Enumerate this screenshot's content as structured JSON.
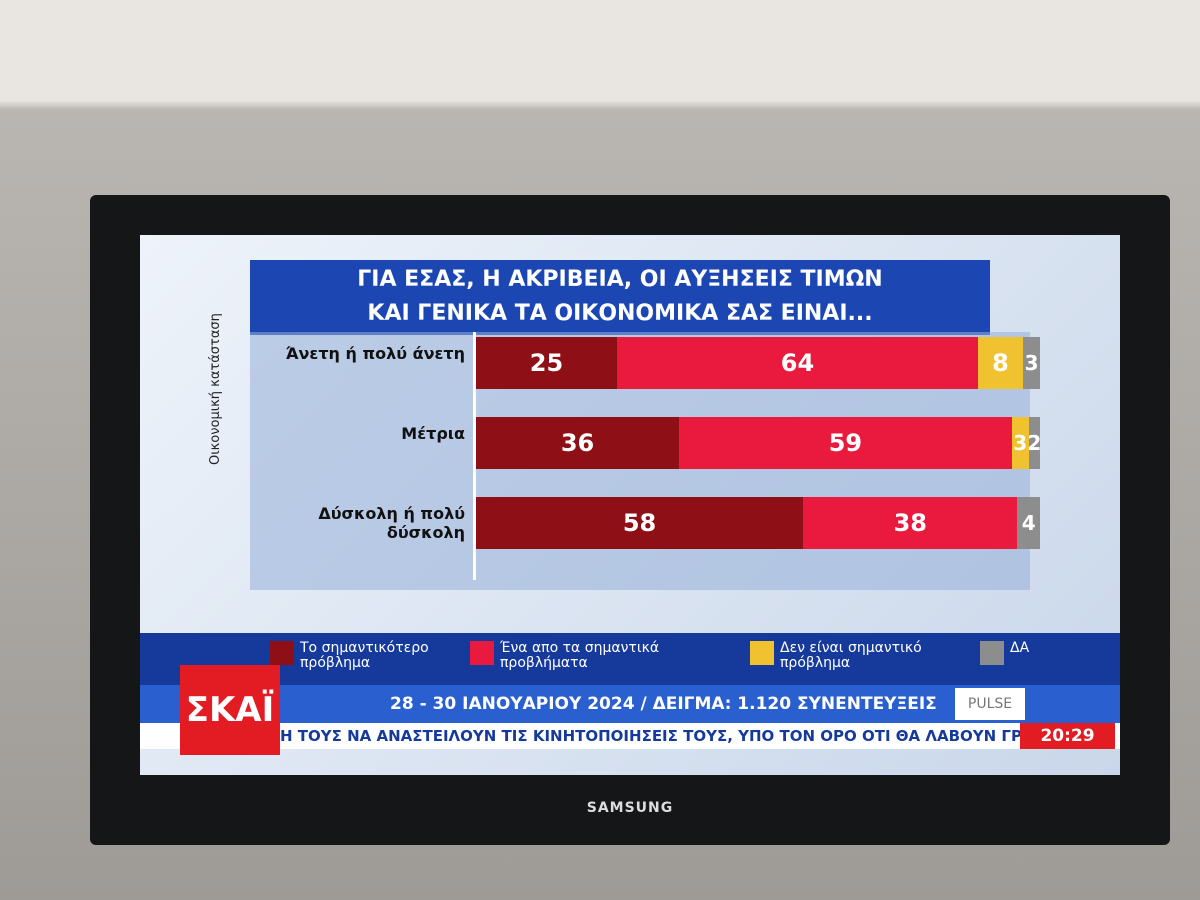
{
  "chart_data": {
    "type": "stacked-bar-horizontal",
    "title": [
      "ΓΙΑ ΕΣΑΣ, Η ΑΚΡΙΒΕΙΑ, ΟΙ ΑΥΞΗΣΕΙΣ ΤΙΜΩΝ",
      "ΚΑΙ ΓΕΝΙΚΑ ΤΑ ΟΙΚΟΝΟΜΙΚΑ ΣΑΣ ΕΙΝΑΙ..."
    ],
    "y_label": "Οικονομική κατάσταση",
    "categories": [
      "Άνετη ή πολύ άνετη",
      "Μέτρια",
      "Δύσκολη ή πολύ δύσκολη"
    ],
    "series": [
      {
        "name": "Το σημαντικότερο πρόβλημα",
        "color": "#8e1016",
        "values": [
          25,
          36,
          58
        ]
      },
      {
        "name": "Ένα απο τα σημαντικά προβλήματα",
        "color": "#ea1a3e",
        "values": [
          64,
          59,
          38
        ]
      },
      {
        "name": "Δεν είναι σημαντικό πρόβλημα",
        "color": "#f0c22f",
        "values": [
          8,
          3,
          null
        ]
      },
      {
        "name": "ΔΑ",
        "color": "#8d8d8d",
        "values": [
          3,
          2,
          4
        ]
      }
    ],
    "xlim": [
      0,
      100
    ]
  },
  "screen": {
    "channel": "ΣΚΑΪ",
    "survey_info": "28 - 30 ΙΑΝΟΥΑΡΙΟΥ 2024 / ΔΕΙΓΜΑ: 1.120 ΣΥΝΕΝΤΕΥΞΕΙΣ",
    "pollster": "PULSE",
    "ticker": "Η ΤΟΥΣ ΝΑ ΑΝΑΣΤΕΙΛΟΥΝ ΤΙΣ ΚΙΝΗΤΟΠΟΙΗΣΕΙΣ ΤΟΥΣ, ΥΠΟ ΤΟΝ ΟΡΟ ΟΤΙ ΘΑ ΛΑΒΟΥΝ ΓΡΑΠΤΟ",
    "time": "20:29"
  },
  "tv": {
    "brand": "SAMSUNG"
  }
}
